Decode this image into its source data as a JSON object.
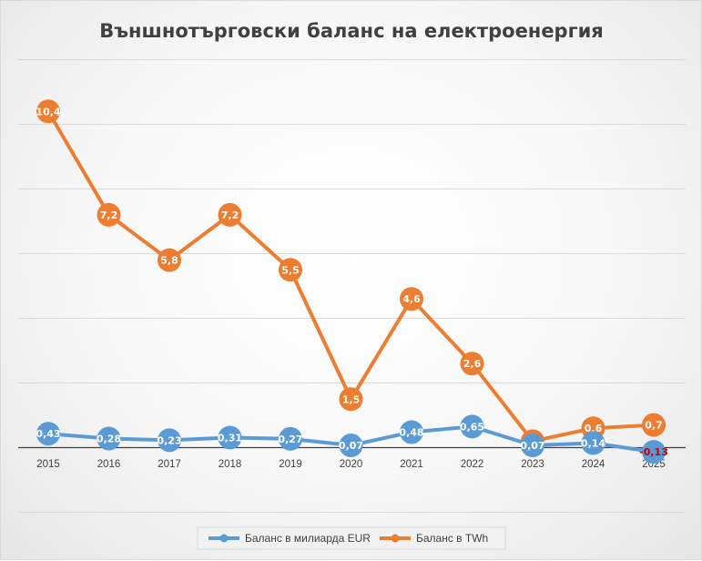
{
  "chart_data": {
    "type": "line",
    "title": "Външнотърговски баланс на електроенергия",
    "categories": [
      "2015",
      "2016",
      "2017",
      "2018",
      "2019",
      "2020",
      "2021",
      "2022",
      "2023",
      "2024",
      "2025"
    ],
    "series": [
      {
        "name": "Баланс в милиарда EUR",
        "color": "#5b9bd5",
        "values": [
          0.43,
          0.28,
          0.23,
          0.31,
          0.27,
          0.07,
          0.48,
          0.65,
          0.07,
          0.14,
          -0.13
        ],
        "labels": [
          "0,43",
          "0,28",
          "0,23",
          "0,31",
          "0,27",
          "0,07",
          "0,48",
          "0,65",
          "0,07",
          "0,14",
          "-0,13"
        ]
      },
      {
        "name": "Баланс в TWh",
        "color": "#ed7d31",
        "values": [
          10.4,
          7.2,
          5.8,
          7.2,
          5.5,
          1.5,
          4.6,
          2.6,
          0.2,
          0.6,
          0.7
        ],
        "labels": [
          "10,4",
          "7,2",
          "5,8",
          "7,2",
          "5,5",
          "1,5",
          "4,6",
          "2,6",
          "0,2",
          "0,6",
          "0,7"
        ]
      }
    ],
    "ylim": [
      -2,
      12
    ],
    "grid": true,
    "legend": "bottom"
  }
}
